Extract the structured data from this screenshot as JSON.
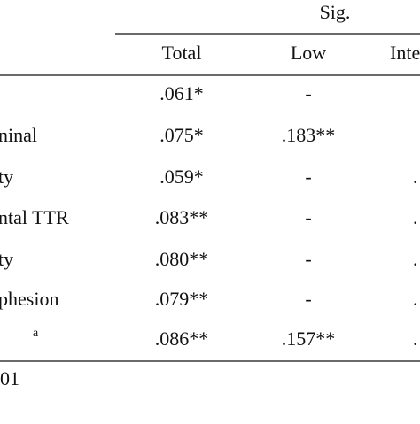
{
  "header": {
    "group": "Sig.",
    "columns": [
      "Total",
      "Low",
      "Inte"
    ]
  },
  "rows": [
    {
      "total": ".061*",
      "low": "-"
    },
    {
      "label": "ninal",
      "total": ".075*",
      "low": ".183**"
    },
    {
      "label": "ty",
      "total": ".059*",
      "low": "-",
      "inter": "."
    },
    {
      "label": "ntal TTR",
      "total": ".083**",
      "low": "-",
      "inter": "."
    },
    {
      "label": "ty",
      "total": ".080**",
      "low": "-",
      "inter": "."
    },
    {
      "label": "phesion",
      "total": ".079**",
      "low": "-",
      "inter": "."
    },
    {
      "note": "a",
      "total": ".086**",
      "low": ".157**",
      "inter": "."
    }
  ],
  "footer": "01"
}
